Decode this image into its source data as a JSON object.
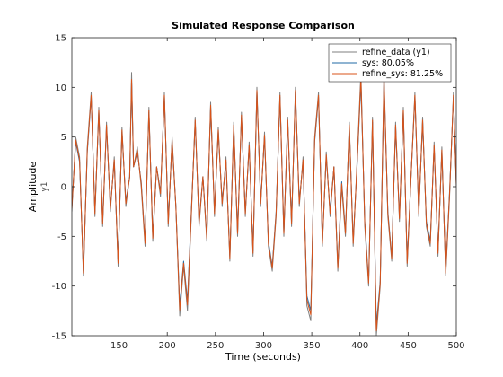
{
  "chart_data": {
    "type": "line",
    "title": "Simulated Response Comparison",
    "xlabel": "Time (seconds)",
    "ylabel": "Amplitude",
    "ylabel_sub": "y1",
    "xlim": [
      101,
      500
    ],
    "ylim": [
      -15,
      15
    ],
    "xticks": [
      150,
      200,
      250,
      300,
      350,
      400,
      450,
      500
    ],
    "yticks": [
      -15,
      -10,
      -5,
      0,
      5,
      10,
      15
    ],
    "legend_position": "top-right",
    "grid": false,
    "series": [
      {
        "name": "refine_data (y1)",
        "color": "#7f7f7f",
        "x": [
          101,
          105,
          109,
          113,
          117,
          121,
          125,
          129,
          133,
          137,
          141,
          145,
          149,
          153,
          157,
          161,
          163,
          165,
          169,
          173,
          177,
          181,
          185,
          189,
          193,
          197,
          201,
          205,
          209,
          213,
          217,
          221,
          225,
          229,
          233,
          237,
          241,
          245,
          249,
          253,
          257,
          261,
          265,
          269,
          273,
          277,
          281,
          285,
          289,
          293,
          297,
          301,
          305,
          309,
          313,
          317,
          321,
          325,
          329,
          333,
          337,
          341,
          345,
          349,
          353,
          357,
          361,
          365,
          369,
          373,
          377,
          381,
          385,
          389,
          393,
          397,
          401,
          405,
          409,
          413,
          417,
          421,
          425,
          429,
          433,
          437,
          441,
          445,
          449,
          453,
          457,
          461,
          465,
          469,
          473,
          477,
          481,
          485,
          489,
          493,
          497,
          500
        ],
        "y": [
          -2.5,
          5.0,
          3.0,
          -9.0,
          4.0,
          9.5,
          -3.0,
          8.0,
          -4.0,
          6.5,
          -2.5,
          3.0,
          -8.0,
          6.0,
          -2.0,
          1.0,
          11.5,
          2.0,
          4.0,
          0.0,
          -6.0,
          8.0,
          -5.5,
          2.0,
          -1.0,
          9.5,
          -4.0,
          5.0,
          -2.0,
          -13.0,
          -8.0,
          -12.5,
          -3.0,
          7.0,
          -4.0,
          1.0,
          -5.5,
          8.5,
          -3.0,
          6.0,
          -2.0,
          3.0,
          -7.5,
          6.5,
          -5.0,
          7.5,
          -3.0,
          4.5,
          -7.0,
          10.0,
          -2.0,
          5.5,
          -6.0,
          -8.5,
          -3.0,
          9.5,
          -5.0,
          7.0,
          -4.0,
          10.0,
          -2.0,
          3.0,
          -12.0,
          -13.5,
          5.0,
          9.5,
          -6.0,
          3.5,
          -3.0,
          2.0,
          -8.5,
          0.0,
          -5.0,
          6.5,
          -6.0,
          2.5,
          11.5,
          -4.0,
          -10.0,
          7.0,
          -15.0,
          -10.0,
          11.5,
          -3.0,
          -7.5,
          6.5,
          -3.5,
          8.0,
          -8.0,
          1.0,
          9.5,
          -3.0,
          7.0,
          -4.0,
          -6.0,
          4.5,
          -7.0,
          4.0,
          -9.0,
          -1.0,
          9.5,
          0.0
        ]
      },
      {
        "name": "sys: 80.05%",
        "color": "#1f6aa5",
        "x": [
          101,
          105,
          109,
          113,
          117,
          121,
          125,
          129,
          133,
          137,
          141,
          145,
          149,
          153,
          157,
          161,
          163,
          165,
          169,
          173,
          177,
          181,
          185,
          189,
          193,
          197,
          201,
          205,
          209,
          213,
          217,
          221,
          225,
          229,
          233,
          237,
          241,
          245,
          249,
          253,
          257,
          261,
          265,
          269,
          273,
          277,
          281,
          285,
          289,
          293,
          297,
          301,
          305,
          309,
          313,
          317,
          321,
          325,
          329,
          333,
          337,
          341,
          345,
          349,
          353,
          357,
          361,
          365,
          369,
          373,
          377,
          381,
          385,
          389,
          393,
          397,
          401,
          405,
          409,
          413,
          417,
          421,
          425,
          429,
          433,
          437,
          441,
          445,
          449,
          453,
          457,
          461,
          465,
          469,
          473,
          477,
          481,
          485,
          489,
          493,
          497,
          500
        ],
        "y": [
          -2.0,
          4.5,
          2.5,
          -8.5,
          3.5,
          9.0,
          -2.5,
          7.5,
          -3.5,
          6.0,
          -2.0,
          2.5,
          -7.5,
          5.5,
          -1.5,
          1.0,
          10.5,
          2.0,
          3.5,
          0.5,
          -5.5,
          7.5,
          -5.0,
          2.0,
          -0.5,
          9.0,
          -3.5,
          4.5,
          -2.0,
          -12.0,
          -7.5,
          -11.5,
          -2.5,
          6.5,
          -3.5,
          1.0,
          -5.0,
          8.0,
          -2.5,
          5.5,
          -1.5,
          2.5,
          -7.0,
          6.0,
          -4.5,
          7.0,
          -2.5,
          4.0,
          -6.5,
          9.5,
          -1.5,
          5.0,
          -5.5,
          -8.0,
          -2.5,
          9.0,
          -4.5,
          6.5,
          -3.5,
          9.5,
          -1.5,
          2.5,
          -11.0,
          -12.5,
          4.5,
          9.0,
          -5.5,
          3.0,
          -2.5,
          2.0,
          -8.0,
          0.5,
          -4.5,
          6.0,
          -5.5,
          2.0,
          10.5,
          -3.5,
          -9.5,
          6.5,
          -14.0,
          -9.5,
          10.5,
          -2.5,
          -7.0,
          6.0,
          -3.0,
          7.5,
          -7.5,
          1.0,
          9.0,
          -2.5,
          6.5,
          -3.5,
          -5.5,
          4.0,
          -6.5,
          3.5,
          -8.5,
          -0.5,
          9.0,
          0.5
        ]
      },
      {
        "name": "refine_sys: 81.25%",
        "color": "#d95319",
        "x": [
          101,
          105,
          109,
          113,
          117,
          121,
          125,
          129,
          133,
          137,
          141,
          145,
          149,
          153,
          157,
          161,
          163,
          165,
          169,
          173,
          177,
          181,
          185,
          189,
          193,
          197,
          201,
          205,
          209,
          213,
          217,
          221,
          225,
          229,
          233,
          237,
          241,
          245,
          249,
          253,
          257,
          261,
          265,
          269,
          273,
          277,
          281,
          285,
          289,
          293,
          297,
          301,
          305,
          309,
          313,
          317,
          321,
          325,
          329,
          333,
          337,
          341,
          345,
          349,
          353,
          357,
          361,
          365,
          369,
          373,
          377,
          381,
          385,
          389,
          393,
          397,
          401,
          405,
          409,
          413,
          417,
          421,
          425,
          429,
          433,
          437,
          441,
          445,
          449,
          453,
          457,
          461,
          465,
          469,
          473,
          477,
          481,
          485,
          489,
          493,
          497,
          500
        ],
        "y": [
          -2.2,
          4.7,
          2.7,
          -8.7,
          3.7,
          9.2,
          -2.7,
          7.7,
          -3.7,
          6.2,
          -2.2,
          2.7,
          -7.7,
          5.7,
          -1.7,
          1.0,
          10.8,
          2.0,
          3.7,
          0.3,
          -5.7,
          7.7,
          -5.2,
          2.0,
          -0.7,
          9.2,
          -3.7,
          4.7,
          -2.0,
          -12.4,
          -7.7,
          -11.9,
          -2.7,
          6.7,
          -3.7,
          1.0,
          -5.2,
          8.2,
          -2.7,
          5.7,
          -1.7,
          2.7,
          -7.2,
          6.2,
          -4.7,
          7.2,
          -2.7,
          4.2,
          -6.7,
          9.7,
          -1.7,
          5.2,
          -5.7,
          -8.2,
          -2.7,
          9.2,
          -4.7,
          6.7,
          -3.7,
          9.7,
          -1.7,
          2.7,
          -11.4,
          -12.9,
          4.7,
          9.2,
          -5.7,
          3.2,
          -2.7,
          2.0,
          -8.2,
          0.3,
          -4.7,
          6.2,
          -5.7,
          2.2,
          10.9,
          -3.7,
          -9.7,
          6.7,
          -14.5,
          -9.7,
          10.9,
          -2.7,
          -7.2,
          6.2,
          -3.2,
          7.7,
          -7.7,
          1.0,
          9.2,
          -2.7,
          6.7,
          -3.7,
          -5.7,
          4.2,
          -6.7,
          3.7,
          -8.7,
          -0.7,
          9.2,
          0.3
        ]
      }
    ]
  }
}
